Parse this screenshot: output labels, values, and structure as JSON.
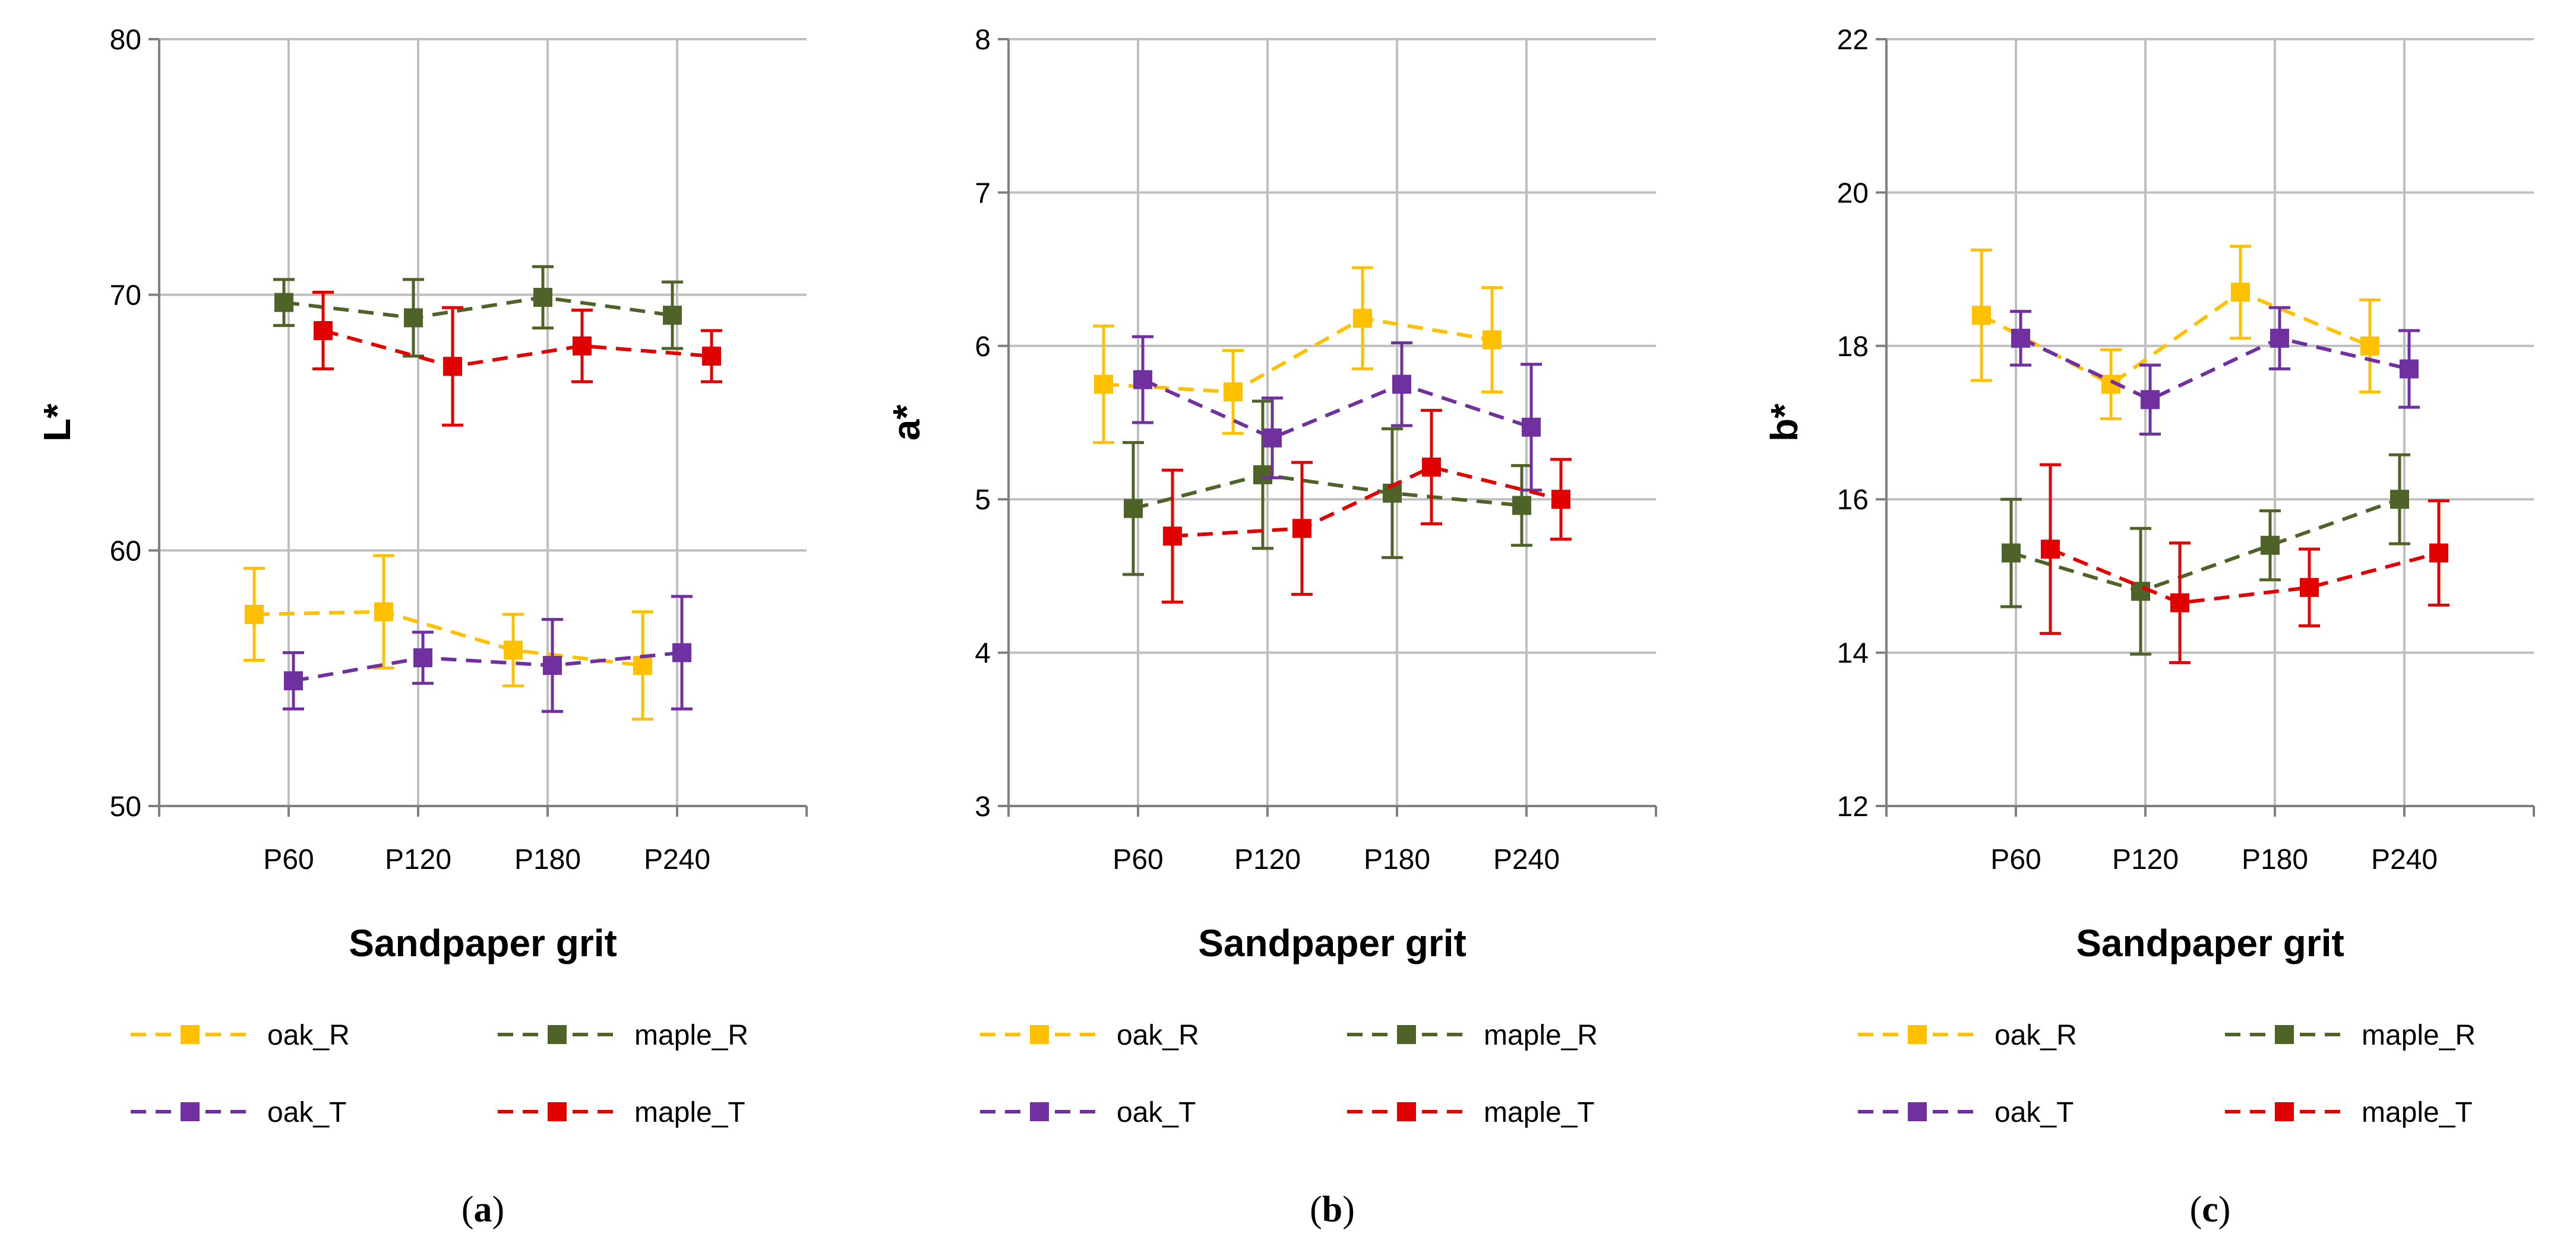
{
  "chart_data": [
    {
      "type": "line",
      "panel_label": "a",
      "title": "",
      "xlabel": "Sandpaper grit",
      "ylabel": "L*",
      "categories": [
        "P60",
        "P120",
        "P180",
        "P240"
      ],
      "ylim": [
        50,
        80
      ],
      "yticks": [
        50,
        60,
        70,
        80
      ],
      "grid": true,
      "legend_position": "bottom",
      "series": [
        {
          "name": "oak_R",
          "color": "#FFC000",
          "values": [
            57.5,
            57.6,
            56.1,
            55.5
          ],
          "errors": [
            1.8,
            2.2,
            1.4,
            2.1
          ]
        },
        {
          "name": "maple_R",
          "color": "#4F6228",
          "values": [
            69.7,
            69.1,
            69.9,
            69.2
          ],
          "errors": [
            0.9,
            1.5,
            1.2,
            1.3
          ]
        },
        {
          "name": "oak_T",
          "color": "#7030A0",
          "values": [
            54.9,
            55.8,
            55.5,
            56.0
          ],
          "errors": [
            1.1,
            1.0,
            1.8,
            2.2
          ]
        },
        {
          "name": "maple_T",
          "color": "#E00000",
          "values": [
            68.6,
            67.2,
            68.0,
            67.6
          ],
          "errors": [
            1.5,
            2.3,
            1.4,
            1.0
          ]
        }
      ]
    },
    {
      "type": "line",
      "panel_label": "b",
      "title": "",
      "xlabel": "Sandpaper grit",
      "ylabel": "a*",
      "categories": [
        "P60",
        "P120",
        "P180",
        "P240"
      ],
      "ylim": [
        3,
        8
      ],
      "yticks": [
        3,
        4,
        5,
        6,
        7,
        8
      ],
      "grid": true,
      "legend_position": "bottom",
      "series": [
        {
          "name": "oak_R",
          "color": "#FFC000",
          "values": [
            5.75,
            5.7,
            6.18,
            6.04
          ],
          "errors": [
            0.38,
            0.27,
            0.33,
            0.34
          ]
        },
        {
          "name": "maple_R",
          "color": "#4F6228",
          "values": [
            4.94,
            5.16,
            5.04,
            4.96
          ],
          "errors": [
            0.43,
            0.48,
            0.42,
            0.26
          ]
        },
        {
          "name": "oak_T",
          "color": "#7030A0",
          "values": [
            5.78,
            5.4,
            5.75,
            5.47
          ],
          "errors": [
            0.28,
            0.26,
            0.27,
            0.41
          ]
        },
        {
          "name": "maple_T",
          "color": "#E00000",
          "values": [
            4.76,
            4.81,
            5.21,
            5.0
          ],
          "errors": [
            0.43,
            0.43,
            0.37,
            0.26
          ]
        }
      ]
    },
    {
      "type": "line",
      "panel_label": "c",
      "title": "",
      "xlabel": "Sandpaper grit",
      "ylabel": "b*",
      "categories": [
        "P60",
        "P120",
        "P180",
        "P240"
      ],
      "ylim": [
        12,
        22
      ],
      "yticks": [
        12,
        14,
        16,
        18,
        20,
        22
      ],
      "grid": true,
      "legend_position": "bottom",
      "series": [
        {
          "name": "oak_R",
          "color": "#FFC000",
          "values": [
            18.4,
            17.5,
            18.7,
            18.0
          ],
          "errors": [
            0.85,
            0.45,
            0.6,
            0.6
          ]
        },
        {
          "name": "maple_R",
          "color": "#4F6228",
          "values": [
            15.3,
            14.8,
            15.4,
            16.0
          ],
          "errors": [
            0.7,
            0.82,
            0.45,
            0.58
          ]
        },
        {
          "name": "oak_T",
          "color": "#7030A0",
          "values": [
            18.1,
            17.3,
            18.1,
            17.7
          ],
          "errors": [
            0.35,
            0.45,
            0.4,
            0.5
          ]
        },
        {
          "name": "maple_T",
          "color": "#E00000",
          "values": [
            15.35,
            14.65,
            14.85,
            15.3
          ],
          "errors": [
            1.1,
            0.78,
            0.5,
            0.68
          ]
        }
      ]
    }
  ]
}
